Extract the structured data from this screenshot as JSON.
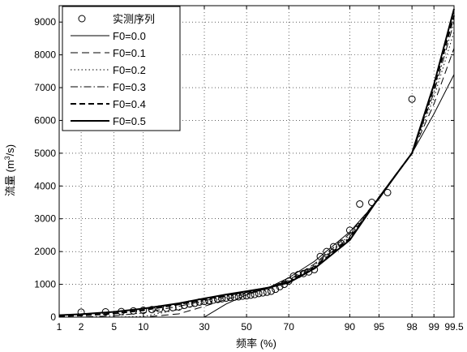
{
  "chart_data": {
    "type": "line",
    "title": "",
    "xlabel": "频率 (%)",
    "ylabel_main": "流量 (m",
    "ylabel_sup": "3",
    "ylabel_tail": "/s)",
    "x_scale": "normal-probability",
    "xlim": [
      1,
      99.5
    ],
    "ylim": [
      0,
      9500
    ],
    "grid": "on (dotted)",
    "legend_position": "top-left",
    "x_ticks": [
      1,
      2,
      5,
      10,
      30,
      50,
      70,
      90,
      95,
      98,
      99,
      99.5
    ],
    "x_tick_labels": [
      "1",
      "2",
      "5",
      "10",
      "30",
      "50",
      "70",
      "90",
      "95",
      "98",
      "99",
      "99.5"
    ],
    "y_ticks": [
      0,
      1000,
      2000,
      3000,
      4000,
      5000,
      6000,
      7000,
      8000,
      9000
    ],
    "y_tick_labels": [
      "0",
      "1000",
      "2000",
      "3000",
      "4000",
      "5000",
      "6000",
      "7000",
      "8000",
      "9000"
    ],
    "observed": {
      "name": "实测序列",
      "x": [
        2,
        4,
        6,
        8,
        10,
        12,
        14,
        16,
        18,
        20,
        22,
        24,
        26,
        28,
        30,
        32,
        34,
        36,
        38,
        40,
        42,
        44,
        46,
        48,
        50,
        52,
        54,
        56,
        58,
        60,
        62,
        64,
        66,
        68,
        70,
        72,
        74,
        76,
        78,
        80,
        82,
        84,
        86,
        88,
        90,
        92,
        94,
        96,
        98
      ],
      "y": [
        150,
        160,
        170,
        190,
        210,
        230,
        250,
        270,
        290,
        310,
        360,
        400,
        420,
        460,
        480,
        500,
        520,
        540,
        560,
        580,
        600,
        610,
        620,
        640,
        650,
        670,
        690,
        720,
        740,
        760,
        790,
        850,
        930,
        1000,
        1100,
        1250,
        1300,
        1330,
        1380,
        1450,
        1850,
        2000,
        2150,
        2250,
        2650,
        3450,
        3500,
        3800,
        6650
      ]
    },
    "series": [
      {
        "name": "F0=0.0",
        "x": [
          1,
          2,
          5,
          10,
          20,
          30,
          40,
          50,
          60,
          70,
          80,
          90,
          95,
          98,
          99,
          99.5
        ],
        "y": [
          0,
          0,
          0,
          0,
          0,
          0,
          400,
          680,
          880,
          1200,
          1700,
          2600,
          3600,
          5000,
          6200,
          7400
        ]
      },
      {
        "name": "F0=0.1",
        "x": [
          1,
          2,
          5,
          10,
          20,
          30,
          40,
          50,
          60,
          70,
          80,
          90,
          95,
          98,
          99,
          99.5
        ],
        "y": [
          0,
          0,
          0,
          0,
          100,
          330,
          540,
          720,
          880,
          1130,
          1620,
          2550,
          3650,
          5000,
          6500,
          8200
        ]
      },
      {
        "name": "F0=0.2",
        "x": [
          1,
          2,
          5,
          10,
          20,
          30,
          40,
          50,
          60,
          70,
          80,
          90,
          95,
          98,
          99,
          99.5
        ],
        "y": [
          0,
          0,
          0,
          20,
          230,
          430,
          600,
          750,
          880,
          1100,
          1580,
          2500,
          3650,
          5000,
          6700,
          8700
        ]
      },
      {
        "name": "F0=0.3",
        "x": [
          1,
          2,
          5,
          10,
          20,
          30,
          40,
          50,
          60,
          70,
          80,
          90,
          95,
          98,
          99,
          99.5
        ],
        "y": [
          0,
          0,
          40,
          130,
          330,
          500,
          640,
          770,
          890,
          1090,
          1540,
          2450,
          3650,
          5000,
          6850,
          9000
        ]
      },
      {
        "name": "F0=0.4",
        "x": [
          1,
          2,
          5,
          10,
          20,
          30,
          40,
          50,
          60,
          70,
          80,
          90,
          95,
          98,
          99,
          99.5
        ],
        "y": [
          30,
          50,
          110,
          210,
          390,
          540,
          670,
          780,
          890,
          1070,
          1500,
          2400,
          3650,
          5000,
          7000,
          9200
        ]
      },
      {
        "name": "F0=0.5",
        "x": [
          1,
          2,
          5,
          10,
          20,
          30,
          40,
          50,
          60,
          70,
          80,
          90,
          95,
          98,
          99,
          99.5
        ],
        "y": [
          60,
          90,
          160,
          260,
          420,
          570,
          690,
          790,
          890,
          1050,
          1480,
          2350,
          3650,
          5000,
          7100,
          9400
        ]
      }
    ],
    "legend_entries": [
      "实测序列",
      "F0=0.0",
      "F0=0.1",
      "F0=0.2",
      "F0=0.3",
      "F0=0.4",
      "F0=0.5"
    ]
  }
}
